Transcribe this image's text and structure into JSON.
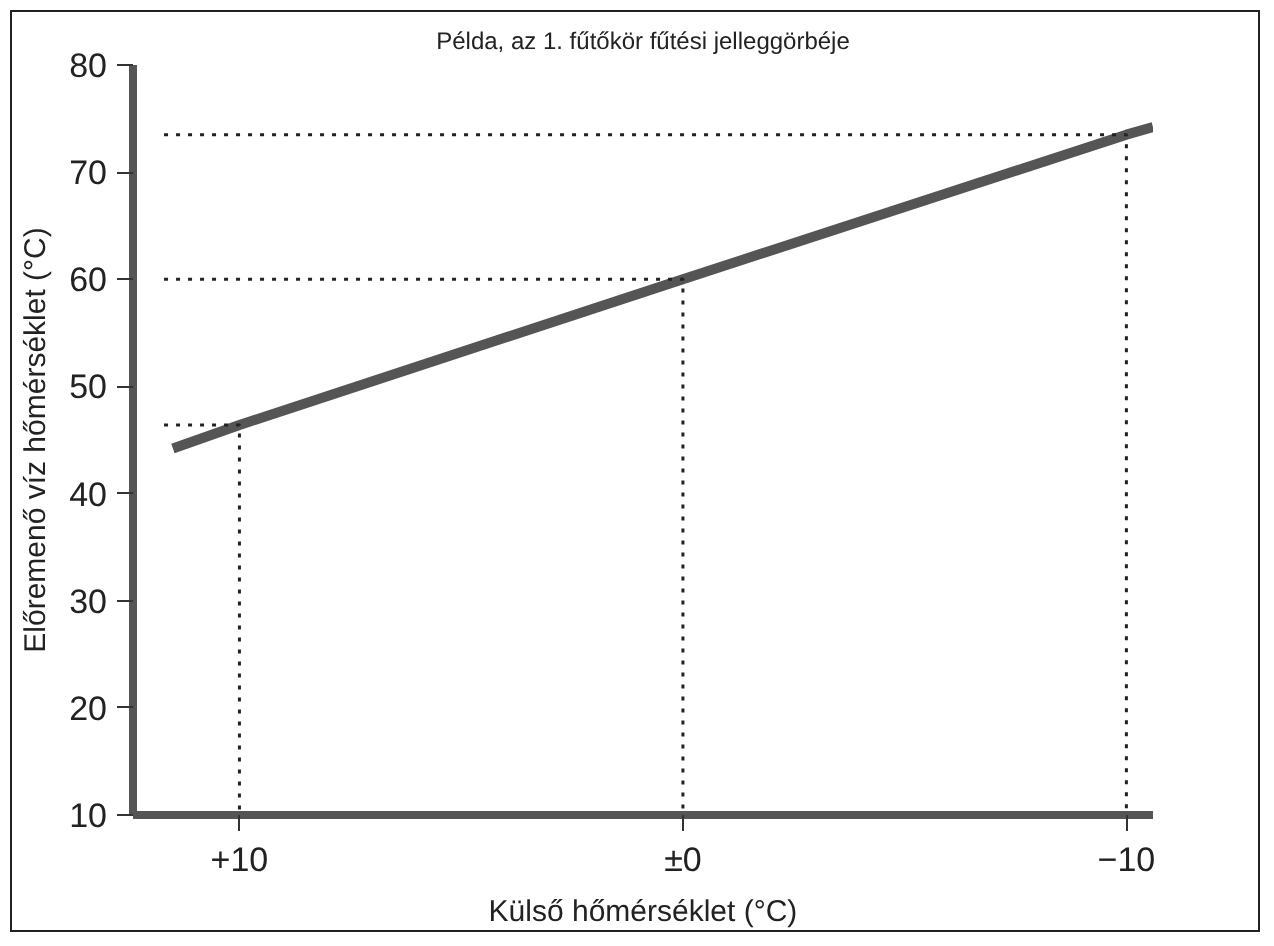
{
  "chart_data": {
    "type": "line",
    "title": "Példa, az 1. fűtőkör fűtési jelleggörbéje",
    "xlabel": "Külső hőmérséklet (°C)",
    "ylabel": "Előremenő víz hőmérséklet (°C)",
    "xlim": [
      12.4,
      -10.6
    ],
    "ylim": [
      10,
      80
    ],
    "xticks": [
      {
        "value": 10,
        "label": "+10"
      },
      {
        "value": 0,
        "label": "±0"
      },
      {
        "value": -10,
        "label": "−10"
      }
    ],
    "yticks": [
      10,
      20,
      30,
      40,
      50,
      60,
      70,
      80
    ],
    "grid": false,
    "series": [
      {
        "color": "#555555",
        "x": [
          11.5,
          10,
          0,
          -10,
          -10.6
        ],
        "values": [
          44.2,
          46.4,
          60,
          73.5,
          74.2
        ]
      },
      {
        "color": "#222222",
        "line_style": "dotted",
        "x": [
          11.7,
          10,
          10
        ],
        "values": [
          46.4,
          46.4,
          10
        ]
      },
      {
        "color": "#222222",
        "line_style": "dotted",
        "x": [
          11.7,
          0,
          0
        ],
        "values": [
          60,
          60,
          10
        ]
      },
      {
        "color": "#222222",
        "line_style": "dotted",
        "x": [
          11.7,
          -10,
          -10
        ],
        "values": [
          73.5,
          73.5,
          10
        ]
      }
    ]
  }
}
